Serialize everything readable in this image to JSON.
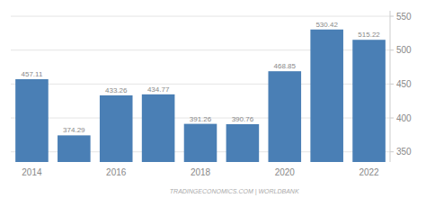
{
  "chart_data": {
    "type": "bar",
    "categories": [
      "2014",
      null,
      "2016",
      null,
      "2018",
      null,
      "2020",
      null,
      "2022"
    ],
    "values": [
      457.11,
      374.29,
      433.26,
      434.77,
      391.26,
      390.76,
      468.85,
      530.42,
      515.22
    ],
    "color": "#4a7fb5",
    "ylim": [
      335,
      558
    ],
    "yticks": [
      350,
      400,
      450,
      500,
      550
    ],
    "grid": true,
    "data_labels": true,
    "annotations": [
      "TRADINGECONOMICS.COM | WORLDBANK"
    ]
  }
}
